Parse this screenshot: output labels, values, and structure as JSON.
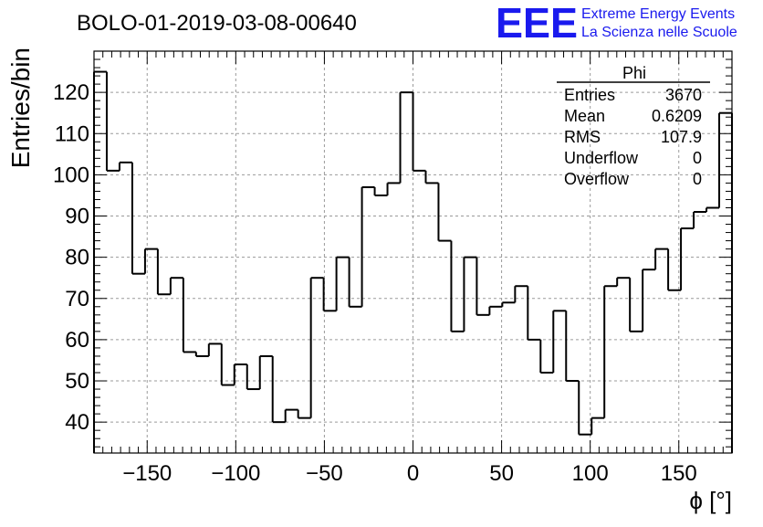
{
  "chart_data": {
    "type": "histogram",
    "title": "BOLO-01-2019-03-08-00640",
    "xlabel": "ϕ [°]",
    "ylabel": "Entries/bin",
    "xlim": [
      -180,
      180
    ],
    "ylim": [
      32.5,
      130
    ],
    "bin_width": 7.2,
    "x_ticks": [
      -150,
      -100,
      -50,
      0,
      50,
      100,
      150
    ],
    "x_tick_labels": [
      "−150",
      "−100",
      "−50",
      "0",
      "50",
      "100",
      "150"
    ],
    "y_ticks": [
      40,
      50,
      60,
      70,
      80,
      90,
      100,
      110,
      120
    ],
    "y_tick_labels": [
      "40",
      "50",
      "60",
      "70",
      "80",
      "90",
      "100",
      "110",
      "120"
    ],
    "grid": true,
    "line_color": "#000000",
    "bin_contents": [
      125,
      101,
      103,
      76,
      82,
      71,
      75,
      57,
      56,
      59,
      49,
      54,
      48,
      56,
      40,
      43,
      41,
      75,
      67,
      80,
      68,
      97,
      95,
      98,
      120,
      101,
      98,
      84,
      62,
      80,
      66,
      68,
      69,
      73,
      60,
      52,
      67,
      50,
      37,
      41,
      73,
      75,
      62,
      77,
      82,
      72,
      87,
      91,
      92,
      115
    ],
    "stats_box": {
      "name": "Phi",
      "rows": [
        {
          "label": "Entries",
          "value": "3670"
        },
        {
          "label": "Mean",
          "value": "0.6209"
        },
        {
          "label": "RMS",
          "value": "107.9"
        },
        {
          "label": "Underflow",
          "value": "0"
        },
        {
          "label": "Overflow",
          "value": "0"
        }
      ]
    }
  },
  "logo": {
    "text": "EEE",
    "line1": "Extreme Energy Events",
    "line2": "La Scienza nelle Scuole",
    "color": "#1a1aee"
  }
}
